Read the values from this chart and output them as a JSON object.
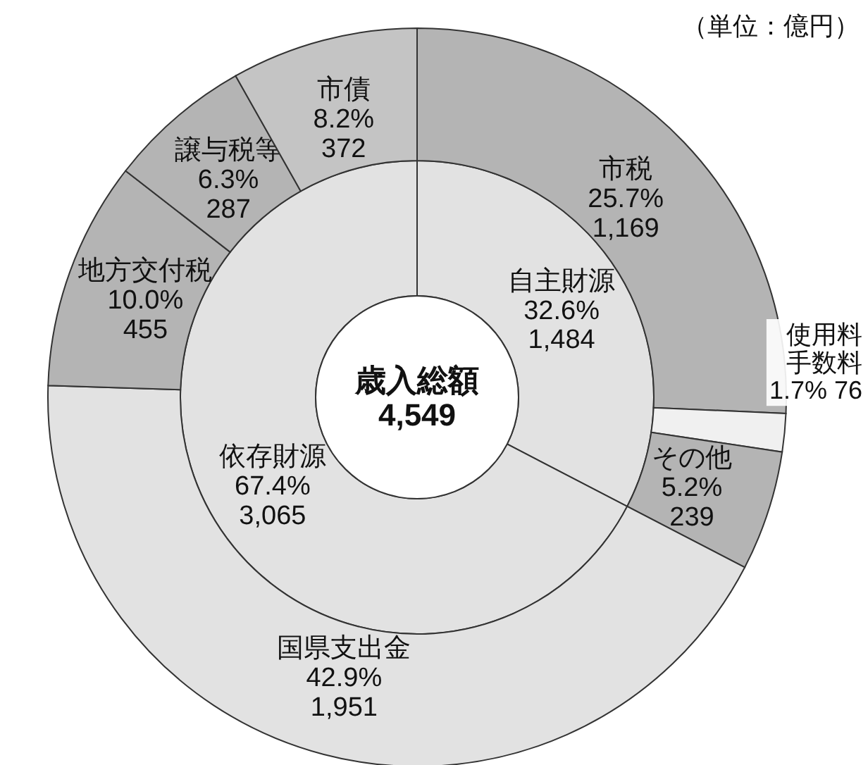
{
  "chart_data": [
    {
      "type": "donut",
      "categories": [
        "自主財源",
        "依存財源"
      ],
      "values": [
        1484,
        3065
      ],
      "value_labels": [
        "32.6%\n1,484",
        "67.4%\n3,065"
      ],
      "colors": [
        "#e2e2e2",
        "#e2e2e2"
      ],
      "annotations": [
        "歳入総額\n4,549"
      ]
    },
    {
      "type": "donut",
      "categories": [
        "市税",
        "使用料手数料",
        "その他",
        "国県支出金",
        "地方交付税",
        "譲与税等",
        "市債"
      ],
      "values": [
        1169,
        76,
        239,
        1951,
        455,
        287,
        372
      ],
      "value_labels": [
        "25.7%\n1,169",
        "1.7% 76",
        "5.2%\n239",
        "42.9%\n1,951",
        "10.0%\n455",
        "6.3%\n287",
        "8.2%\n372"
      ],
      "colors": [
        "#b4b4b4",
        "#f0f0f0",
        "#b4b4b4",
        "#e2e2e2",
        "#b4b4b4",
        "#b4b4b4",
        "#c4c4c4"
      ],
      "annotations": [
        "（単位：億円）"
      ]
    }
  ]
}
